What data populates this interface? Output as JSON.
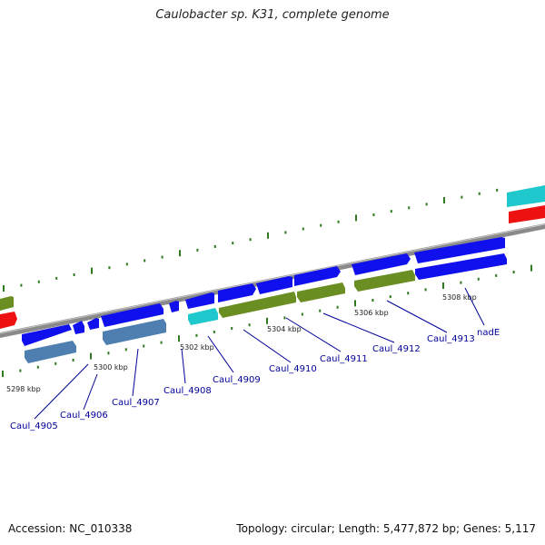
{
  "title": "Caulobacter sp. K31, complete genome",
  "accession": "Accession: NC_010338",
  "summary": "Topology: circular; Length: 5,477,872 bp; Genes: 5,117",
  "colors": {
    "backbone": "#8a8a8a",
    "cds": "#1010ee",
    "cds_steel": "#4f7fb0",
    "olive": "#6b8e23",
    "cyan": "#1ec8cc",
    "red": "#ee1111",
    "dots": "#2f7a1f",
    "label": "#000099"
  },
  "ticks": [
    {
      "label": "5298 kbp"
    },
    {
      "label": "5300 kbp"
    },
    {
      "label": "5302 kbp"
    },
    {
      "label": "5304 kbp"
    },
    {
      "label": "5306 kbp"
    },
    {
      "label": "5308 kbp"
    }
  ],
  "genes": [
    {
      "label": "Caul_4905"
    },
    {
      "label": "Caul_4906"
    },
    {
      "label": "Caul_4907"
    },
    {
      "label": "Caul_4908"
    },
    {
      "label": "Caul_4909"
    },
    {
      "label": "Caul_4910"
    },
    {
      "label": "Caul_4911"
    },
    {
      "label": "Caul_4912"
    },
    {
      "label": "Caul_4913"
    },
    {
      "label": "nadE"
    }
  ]
}
